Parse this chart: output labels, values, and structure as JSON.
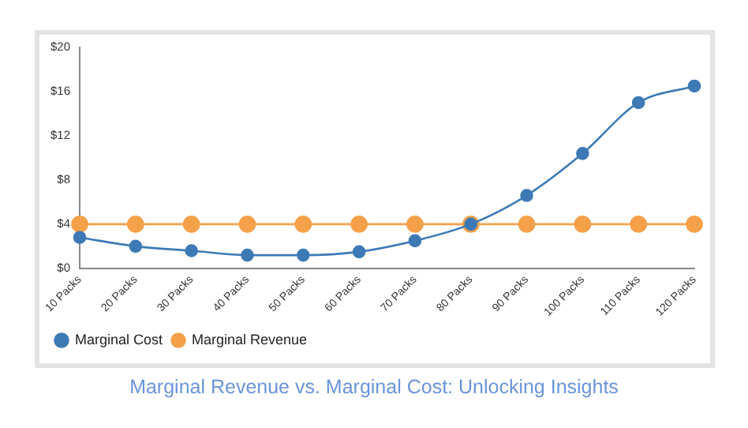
{
  "chart_data": {
    "type": "line",
    "title": "Marginal Revenue vs. Marginal Cost: Unlocking Insights",
    "categories": [
      "10 Packs",
      "20 Packs",
      "30 Packs",
      "40 Packs",
      "50 Packs",
      "60 Packs",
      "70 Packs",
      "80 Packs",
      "90 Packs",
      "100 Packs",
      "110 Packs",
      "120 Packs"
    ],
    "series": [
      {
        "name": "Marginal Cost",
        "color": "#3d7ab5",
        "values": [
          2.8,
          2,
          1.6,
          1.2,
          1.2,
          1.5,
          2.5,
          4,
          6.6,
          10.4,
          15,
          16.5
        ]
      },
      {
        "name": "Marginal Revenue",
        "color": "#f5a14a",
        "values": [
          4,
          4,
          4,
          4,
          4,
          4,
          4,
          4,
          4,
          4,
          4,
          4
        ]
      }
    ],
    "ylim": [
      0,
      20
    ],
    "yticks": [
      {
        "value": 0,
        "label": "$0"
      },
      {
        "value": 4,
        "label": "$4"
      },
      {
        "value": 8,
        "label": "$8"
      },
      {
        "value": 12,
        "label": "$12"
      },
      {
        "value": 16,
        "label": "$16"
      },
      {
        "value": 20,
        "label": "$20"
      }
    ],
    "grid": false,
    "legend": "bottom left",
    "marker": "circle",
    "line_style": "solid"
  }
}
